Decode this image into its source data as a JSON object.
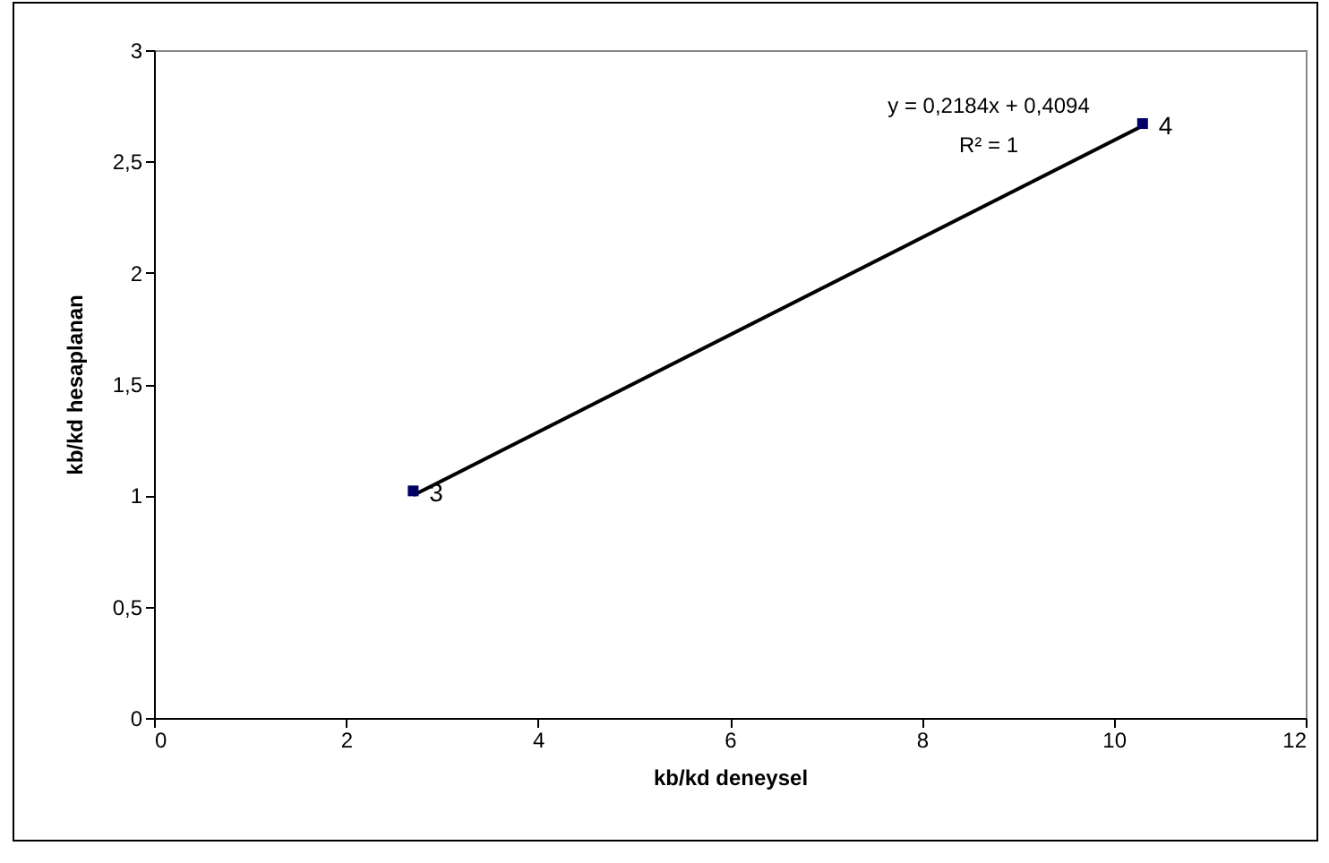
{
  "chart_data": {
    "type": "scatter",
    "xlabel": "kb/kd deneysel",
    "ylabel": "kb/kd hesaplanan",
    "xlim": [
      0,
      12
    ],
    "xticks": [
      0,
      2,
      4,
      6,
      8,
      10,
      12
    ],
    "ylim": [
      0,
      3
    ],
    "yticks": [
      0,
      {
        "value": 0.5,
        "label": "0,5"
      },
      1,
      {
        "value": 1.5,
        "label": "1,5"
      },
      2,
      {
        "value": 2.5,
        "label": "2,5"
      },
      3
    ],
    "grid": false,
    "x": [
      2.7,
      10.3
    ],
    "series": [
      {
        "type": "line",
        "color": "#000000",
        "values": [
          1.0,
          2.66
        ],
        "marker": "none",
        "line_style": "solid"
      },
      {
        "type": "scatter",
        "color": "#000066",
        "values": [
          1.02,
          2.67
        ],
        "marker": "square"
      }
    ],
    "annotations": [
      {
        "text": "3",
        "x": 2.7,
        "y": 1.02
      },
      {
        "text": "4",
        "x": 10.3,
        "y": 2.67
      },
      "y = 0,2184x + 0,4094",
      "R² = 1"
    ]
  }
}
